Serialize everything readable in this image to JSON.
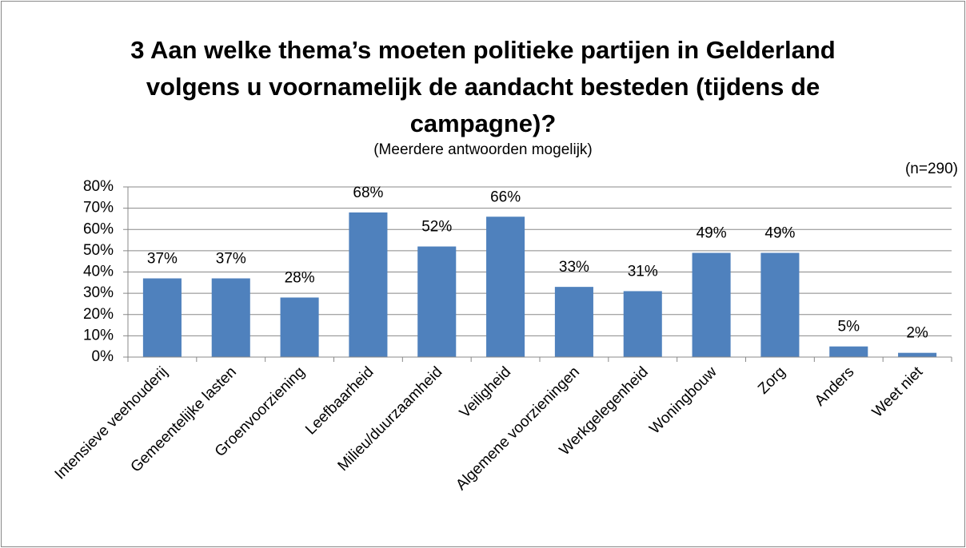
{
  "chart_data": {
    "type": "bar",
    "title": "3 Aan welke thema’s moeten politieke partijen in Gelderland volgens u voornamelijk de aandacht besteden (tijdens de campagne)?",
    "subtitle": "(Meerdere antwoorden mogelijk)",
    "annotation": "(n=290)",
    "categories": [
      "Intensieve veehouderij",
      "Gemeentelijke lasten",
      "Groenvoorziening",
      "Leefbaarheid",
      "Milieu/duurzaamheid",
      "Veiligheid",
      "Algemene voorzieningen",
      "Werkgelegenheid",
      "Woningbouw",
      "Zorg",
      "Anders",
      "Weet niet"
    ],
    "values": [
      37,
      37,
      28,
      68,
      52,
      66,
      33,
      31,
      49,
      49,
      5,
      2
    ],
    "value_labels": [
      "37%",
      "37%",
      "28%",
      "68%",
      "52%",
      "66%",
      "33%",
      "31%",
      "49%",
      "49%",
      "5%",
      "2%"
    ],
    "color": "#4f81bd",
    "ylim": [
      0,
      80
    ],
    "yticks": [
      {
        "value": 0,
        "label": "0%"
      },
      {
        "value": 10,
        "label": "10%"
      },
      {
        "value": 20,
        "label": "20%"
      },
      {
        "value": 30,
        "label": "30%"
      },
      {
        "value": 40,
        "label": "40%"
      },
      {
        "value": 50,
        "label": "50%"
      },
      {
        "value": 60,
        "label": "60%"
      },
      {
        "value": 70,
        "label": "70%"
      },
      {
        "value": 80,
        "label": "80%"
      }
    ],
    "grid": true
  }
}
